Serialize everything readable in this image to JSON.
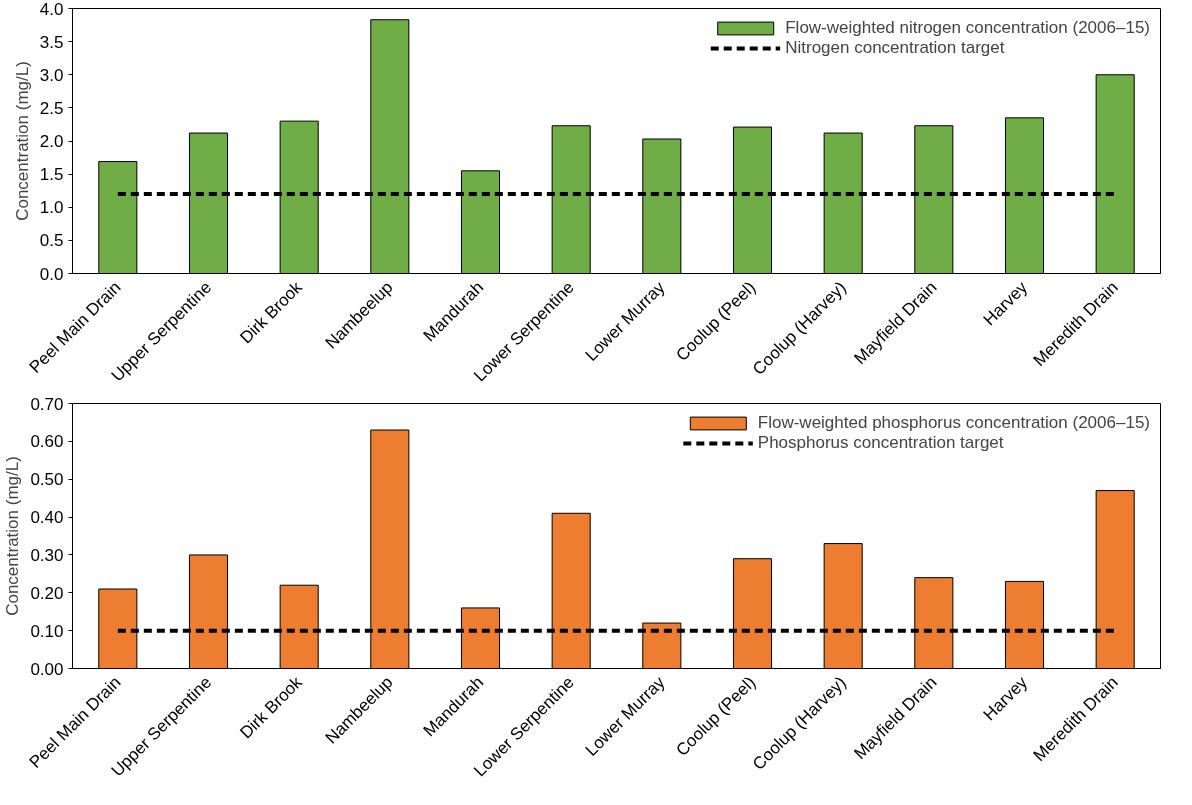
{
  "chart_data": [
    {
      "type": "bar",
      "ylabel": "Concentration (mg/L)",
      "categories": [
        "Peel Main Drain",
        "Upper Serpentine",
        "Dirk Brook",
        "Nambeelup",
        "Mandurah",
        "Lower Serpentine",
        "Lower Murray",
        "Coolup (Peel)",
        "Coolup (Harvey)",
        "Mayfield Drain",
        "Harvey",
        "Meredith Drain"
      ],
      "series": [
        {
          "name": "Flow-weighted nitrogen concentration (2006–15)",
          "color": "#70ad47",
          "values": [
            1.69,
            2.12,
            2.3,
            3.83,
            1.55,
            2.23,
            2.03,
            2.21,
            2.12,
            2.23,
            2.35,
            3.0
          ]
        }
      ],
      "ref_lines": [
        {
          "axis": "y",
          "value": 1.2,
          "label": "Nitrogen concentration target",
          "color": "#000000",
          "line_style": "dashed"
        }
      ],
      "ylim": [
        0,
        4
      ],
      "yticks": [
        {
          "value": 0,
          "label": "0.0"
        },
        {
          "value": 0.5,
          "label": "0.5"
        },
        {
          "value": 1,
          "label": "1.0"
        },
        {
          "value": 1.5,
          "label": "1.5"
        },
        {
          "value": 2,
          "label": "2.0"
        },
        {
          "value": 2.5,
          "label": "2.5"
        },
        {
          "value": 3,
          "label": "3.0"
        },
        {
          "value": 3.5,
          "label": "3.5"
        },
        {
          "value": 4,
          "label": "4.0"
        }
      ],
      "grid": false,
      "legend": "top right"
    },
    {
      "type": "bar",
      "ylabel": "Concentration (mg/L)",
      "categories": [
        "Peel Main Drain",
        "Upper Serpentine",
        "Dirk Brook",
        "Nambeelup",
        "Mandurah",
        "Lower Serpentine",
        "Lower Murray",
        "Coolup (Peel)",
        "Coolup (Harvey)",
        "Mayfield Drain",
        "Harvey",
        "Meredith Drain"
      ],
      "series": [
        {
          "name": "Flow-weighted phosphorus concentration (2006–15)",
          "color": "#ed7d31",
          "values": [
            0.21,
            0.3,
            0.22,
            0.63,
            0.16,
            0.41,
            0.12,
            0.29,
            0.33,
            0.24,
            0.23,
            0.47
          ]
        }
      ],
      "ref_lines": [
        {
          "axis": "y",
          "value": 0.1,
          "label": "Phosphorus concentration target",
          "color": "#000000",
          "line_style": "dashed"
        }
      ],
      "ylim": [
        0,
        0.7
      ],
      "yticks": [
        {
          "value": 0,
          "label": "0.00"
        },
        {
          "value": 0.1,
          "label": "0.10"
        },
        {
          "value": 0.2,
          "label": "0.20"
        },
        {
          "value": 0.3,
          "label": "0.30"
        },
        {
          "value": 0.4,
          "label": "0.40"
        },
        {
          "value": 0.5,
          "label": "0.50"
        },
        {
          "value": 0.6,
          "label": "0.60"
        },
        {
          "value": 0.7,
          "label": "0.70"
        }
      ],
      "grid": false,
      "legend": "top right"
    }
  ]
}
